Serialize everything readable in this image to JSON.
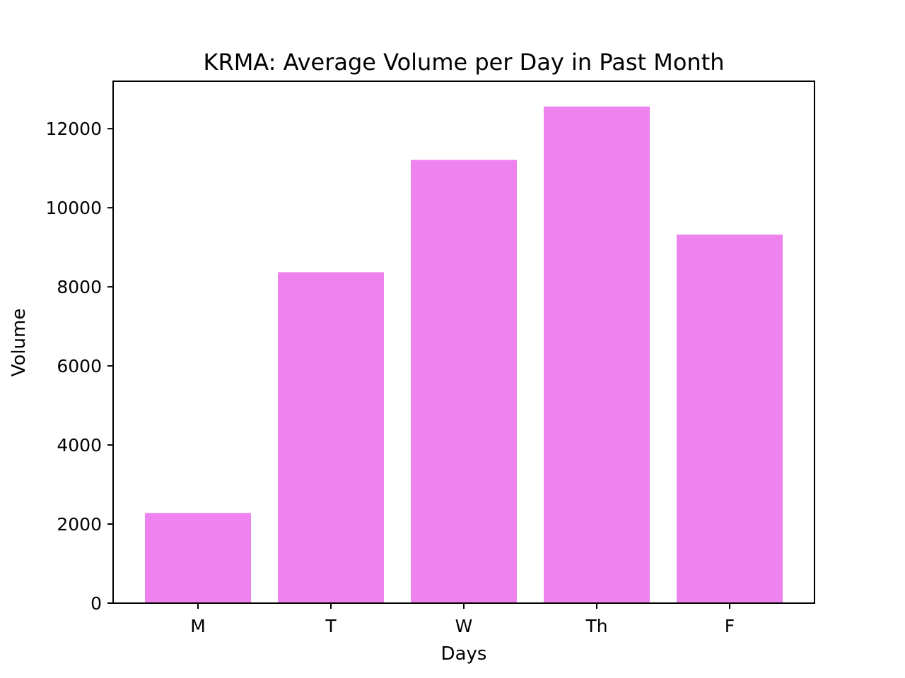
{
  "chart_data": {
    "type": "bar",
    "title": "KRMA: Average Volume per Day in Past Month",
    "xlabel": "Days",
    "ylabel": "Volume",
    "categories": [
      "M",
      "T",
      "W",
      "Th",
      "F"
    ],
    "values": [
      2280,
      8370,
      11210,
      12560,
      9320
    ],
    "ylim": [
      0,
      13200
    ],
    "yticks": [
      0,
      2000,
      4000,
      6000,
      8000,
      10000,
      12000
    ],
    "grid": false,
    "legend": "none",
    "bar_color": "#ee82ee"
  }
}
